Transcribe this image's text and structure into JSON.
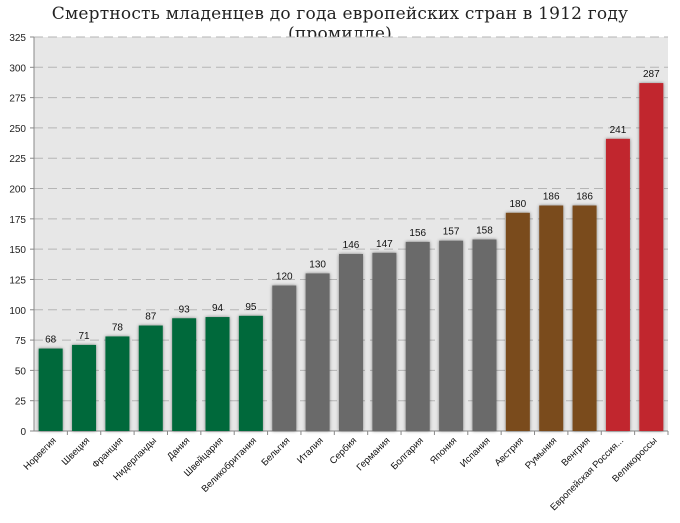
{
  "chart_data": {
    "type": "bar",
    "title": "Смертность младенцев до года европейских стран в 1912 году (промилле)",
    "xlabel": "",
    "ylabel": "",
    "ylim": [
      0,
      325
    ],
    "yticks": [
      0,
      25,
      50,
      75,
      100,
      125,
      150,
      175,
      200,
      225,
      250,
      275,
      300,
      325
    ],
    "grid": true,
    "legend": "none",
    "categories": [
      "Норвегия",
      "Швеция",
      "Франция",
      "Нидерланды",
      "Дания",
      "Швейцария",
      "Великобритания",
      "Бельгия",
      "Италия",
      "Сербия",
      "Германия",
      "Болгария",
      "Япония",
      "Испания",
      "Австрия",
      "Румыния",
      "Венгрия",
      "Европейская Россия...",
      "Великороссы"
    ],
    "values": [
      68,
      71,
      78,
      87,
      93,
      94,
      95,
      120,
      130,
      146,
      147,
      156,
      157,
      158,
      180,
      186,
      186,
      241,
      287
    ],
    "groups": [
      "green",
      "green",
      "green",
      "green",
      "green",
      "green",
      "green",
      "gray",
      "gray",
      "gray",
      "gray",
      "gray",
      "gray",
      "gray",
      "brown",
      "brown",
      "brown",
      "red",
      "red"
    ],
    "colors": {
      "green": "#00693a",
      "gray": "#6b6b6b",
      "brown": "#7a4b1e",
      "red": "#c1272d"
    }
  }
}
